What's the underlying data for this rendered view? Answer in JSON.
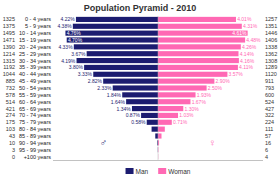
{
  "chart_data": {
    "type": "bar",
    "orientation": "horizontal",
    "title": "Population Pyramid - 2010",
    "categories": [
      "+100 years",
      "95 - 99 years",
      "90 - 94 years",
      "85 - 89 years",
      "80 - 84 years",
      "75 - 79 years",
      "70 - 74 years",
      "65 - 69 years",
      "60 - 64 years",
      "55 - 59 years",
      "50 - 54 years",
      "45 - 49 years",
      "40 - 44 years",
      "35 - 39 years",
      "30 - 34 years",
      "25 - 29 years",
      "20 - 24 years",
      "15 - 19 years",
      "10 - 14 years",
      "5 - 9 years",
      "0 - 4 years"
    ],
    "series": [
      {
        "name": "Man",
        "color": "#1c1c70",
        "values": [
          0.0,
          0.01,
          0.035,
          0.14,
          0.33,
          0.58,
          0.87,
          1.34,
          1.64,
          1.84,
          2.33,
          2.82,
          3.33,
          3.8,
          4.19,
          3.67,
          4.33,
          4.695,
          4.76,
          4.38,
          4.22
        ],
        "value_labels": [
          null,
          null,
          null,
          null,
          null,
          "0.58%",
          "0.87%",
          "1.34%",
          "1.64%",
          "1.84%",
          "2.33%",
          "2.82%",
          "3.33%",
          "3.80%",
          "4.19%",
          "3.67%",
          "4.33%",
          "4.70%",
          "4.76%",
          "4.38%",
          "4.22%"
        ],
        "counts": [
          0,
          3,
          10,
          43,
          103,
          175,
          274,
          421,
          514,
          578,
          732,
          885,
          1044,
          1192,
          1315,
          1214,
          1390,
          1471,
          1495,
          1375,
          1325
        ]
      },
      {
        "name": "Woman",
        "color": "#ff69b4",
        "values": [
          0.01,
          0.02,
          0.055,
          0.18,
          0.35,
          0.71,
          1.03,
          1.3,
          1.67,
          1.93,
          2.5,
          2.9,
          3.57,
          4.11,
          4.16,
          4.14,
          4.26,
          4.48,
          4.61,
          4.31,
          4.01
        ],
        "value_labels": [
          null,
          null,
          null,
          null,
          null,
          "0.71%",
          "1.03%",
          "1.30%",
          "1.67%",
          "1.93%",
          "2.50%",
          "2.90%",
          "3.57%",
          "4.11%",
          "4.16%",
          "4.14%",
          "4.26%",
          "4.48%",
          "4.61%",
          "4.31%",
          "4.01%"
        ],
        "counts": [
          4,
          6,
          16,
          57,
          111,
          224,
          322,
          427,
          524,
          600,
          793,
          911,
          1120,
          1289,
          1308,
          1362,
          1338,
          1406,
          1446,
          1351,
          1257
        ]
      }
    ],
    "annotations": [
      "♂",
      "♀"
    ],
    "xlim": [
      -5.4,
      5.4
    ],
    "data_labels": true,
    "tick_labels": "y",
    "grid": false,
    "legend": "bottom"
  }
}
